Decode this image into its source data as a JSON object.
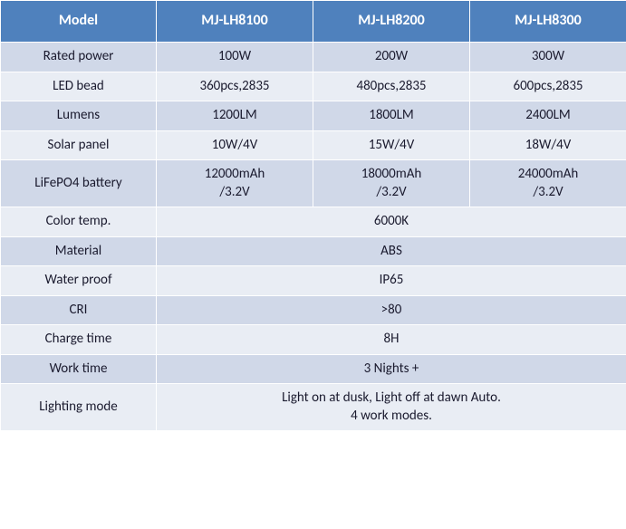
{
  "table": {
    "header_bg": "#4f81bd",
    "header_color": "#ffffff",
    "row_odd_bg": "#d0d8e8",
    "row_even_bg": "#e9edf4",
    "text_color": "#1a1a2e",
    "border_color": "#ffffff",
    "columns": [
      "Model",
      "MJ-LH8100",
      "MJ-LH8200",
      "MJ-LH8300"
    ],
    "rows": [
      {
        "label": "Rated power",
        "cells": [
          "100W",
          "200W",
          "300W"
        ]
      },
      {
        "label": "LED bead",
        "cells": [
          "360pcs,2835",
          "480pcs,2835",
          "600pcs,2835"
        ]
      },
      {
        "label": "Lumens",
        "cells": [
          "1200LM",
          "1800LM",
          "2400LM"
        ]
      },
      {
        "label": "Solar panel",
        "cells": [
          "10W/4V",
          "15W/4V",
          "18W/4V"
        ]
      },
      {
        "label": "LiFePO4 battery",
        "cells": [
          "12000mAh\n/3.2V",
          "18000mAh\n/3.2V",
          "24000mAh\n/3.2V"
        ]
      },
      {
        "label": "Color temp.",
        "span": "6000K"
      },
      {
        "label": "Material",
        "span": "ABS"
      },
      {
        "label": "Water proof",
        "span": "IP65"
      },
      {
        "label": "CRI",
        "span": ">80"
      },
      {
        "label": "Charge time",
        "span": "8H"
      },
      {
        "label": "Work time",
        "span": "3 Nights +"
      },
      {
        "label": "Lighting mode",
        "span": "Light on at dusk, Light off at dawn Auto.\n4 work modes."
      }
    ]
  }
}
